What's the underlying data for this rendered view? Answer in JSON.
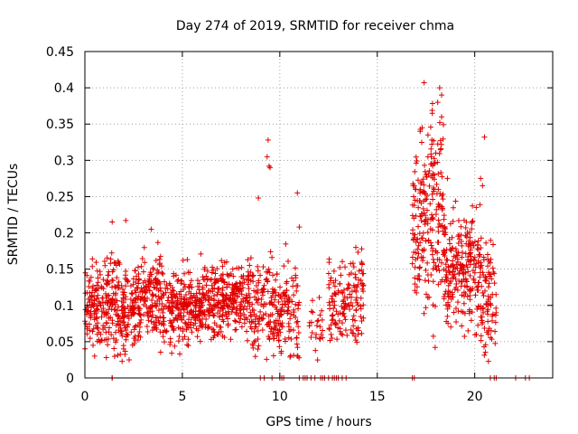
{
  "chart_data": {
    "type": "scatter",
    "title": "Day 274 of 2019, SRMTID for receiver chma",
    "xlabel": "GPS time / hours",
    "ylabel": "SRMTID / TECUs",
    "xlim": [
      0,
      24
    ],
    "ylim": [
      0,
      0.45
    ],
    "xticks": [
      0,
      5,
      10,
      15,
      20
    ],
    "yticks": [
      0,
      0.05,
      0.1,
      0.15,
      0.2,
      0.25,
      0.3,
      0.35,
      0.4,
      0.45
    ],
    "xtick_labels": [
      "0",
      "5",
      "10",
      "15",
      "20"
    ],
    "ytick_labels": [
      "0",
      "0.05",
      "0.1",
      "0.15",
      "0.2",
      "0.25",
      "0.3",
      "0.35",
      "0.4",
      "0.45"
    ],
    "grid": true,
    "marker": "+",
    "marker_color": "#e00000",
    "grid_color": "#a0a0a0",
    "series": [
      {
        "name": "SRMTID",
        "segments": [
          {
            "x_start": 0.0,
            "x_end": 3.0,
            "mean": 0.1,
            "spread": 0.03,
            "count": 360
          },
          {
            "x_start": 3.0,
            "x_end": 4.0,
            "mean": 0.115,
            "spread": 0.032,
            "count": 120
          },
          {
            "x_start": 4.0,
            "x_end": 6.0,
            "mean": 0.098,
            "spread": 0.025,
            "count": 240
          },
          {
            "x_start": 6.0,
            "x_end": 8.5,
            "mean": 0.11,
            "spread": 0.025,
            "count": 300
          },
          {
            "x_start": 8.5,
            "x_end": 10.5,
            "mean": 0.095,
            "spread": 0.03,
            "count": 200
          },
          {
            "x_start": 10.5,
            "x_end": 11.0,
            "mean": 0.09,
            "spread": 0.035,
            "count": 40
          },
          {
            "x_start": 11.5,
            "x_end": 12.2,
            "mean": 0.075,
            "spread": 0.025,
            "count": 25
          },
          {
            "x_start": 12.5,
            "x_end": 13.5,
            "mean": 0.1,
            "spread": 0.03,
            "count": 80
          },
          {
            "x_start": 13.5,
            "x_end": 14.3,
            "mean": 0.11,
            "spread": 0.03,
            "count": 70
          },
          {
            "x_start": 16.8,
            "x_end": 17.6,
            "mean": 0.22,
            "spread": 0.06,
            "count": 110
          },
          {
            "x_start": 17.6,
            "x_end": 18.4,
            "mean": 0.23,
            "spread": 0.07,
            "count": 110
          },
          {
            "x_start": 18.4,
            "x_end": 19.5,
            "mean": 0.15,
            "spread": 0.04,
            "count": 140
          },
          {
            "x_start": 19.5,
            "x_end": 20.3,
            "mean": 0.15,
            "spread": 0.04,
            "count": 100
          },
          {
            "x_start": 20.3,
            "x_end": 21.1,
            "mean": 0.11,
            "spread": 0.04,
            "count": 90
          }
        ],
        "peaks": [
          [
            9.4,
            0.328
          ],
          [
            9.35,
            0.305
          ],
          [
            9.45,
            0.292
          ],
          [
            9.5,
            0.29
          ],
          [
            8.9,
            0.248
          ],
          [
            10.9,
            0.255
          ],
          [
            11.0,
            0.208
          ],
          [
            1.4,
            0.215
          ],
          [
            2.1,
            0.217
          ],
          [
            3.4,
            0.205
          ],
          [
            13.9,
            0.18
          ],
          [
            14.2,
            0.178
          ],
          [
            17.4,
            0.407
          ],
          [
            18.2,
            0.4
          ],
          [
            18.3,
            0.39
          ],
          [
            18.1,
            0.38
          ],
          [
            18.3,
            0.36
          ],
          [
            17.3,
            0.345
          ],
          [
            17.2,
            0.34
          ],
          [
            17.6,
            0.335
          ],
          [
            17.8,
            0.328
          ],
          [
            20.5,
            0.332
          ],
          [
            20.3,
            0.275
          ],
          [
            20.4,
            0.265
          ],
          [
            17.6,
            0.305
          ],
          [
            18.0,
            0.31
          ],
          [
            16.9,
            0.265
          ],
          [
            18.6,
            0.275
          ],
          [
            19.0,
            0.15
          ],
          [
            0.5,
            0.03
          ],
          [
            1.1,
            0.028
          ],
          [
            1.4,
            0.0
          ]
        ],
        "zeros": [
          1.4,
          9.0,
          9.2,
          9.6,
          10.0,
          10.1,
          10.2,
          11.0,
          11.2,
          11.3,
          11.4,
          11.6,
          11.8,
          12.1,
          12.2,
          12.3,
          12.5,
          12.7,
          12.8,
          12.9,
          13.0,
          13.2,
          13.4,
          16.8,
          16.9,
          20.8,
          21.0,
          21.1,
          22.1,
          22.6,
          22.8
        ]
      }
    ]
  }
}
